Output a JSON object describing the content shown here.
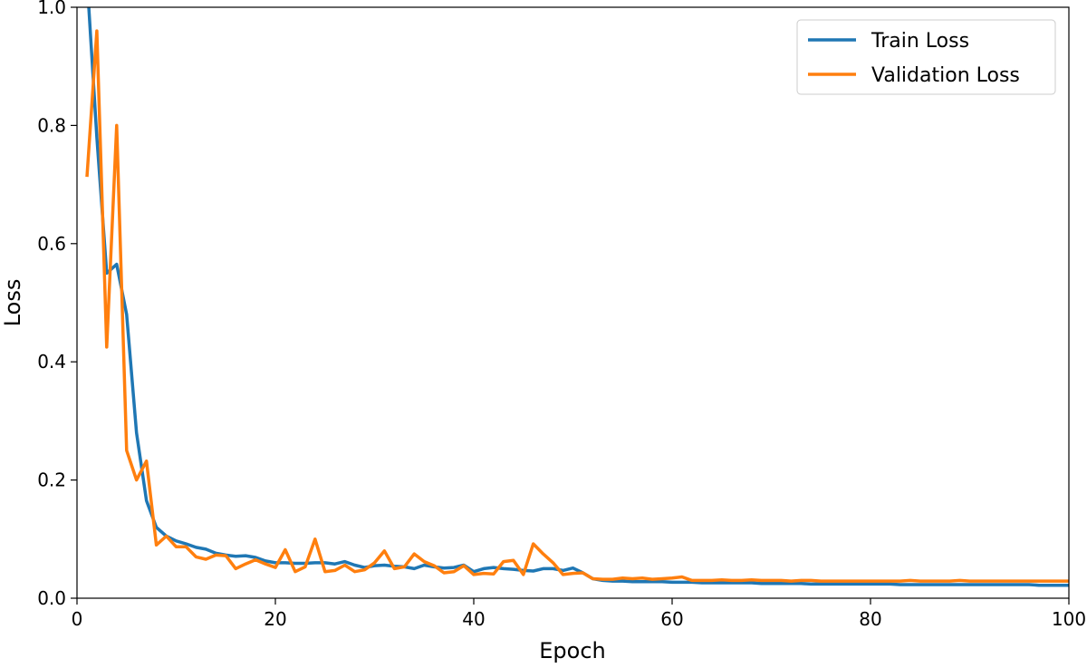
{
  "chart_data": {
    "type": "line",
    "title": "",
    "xlabel": "Epoch",
    "ylabel": "Loss",
    "xlim": [
      0,
      100
    ],
    "ylim": [
      0,
      1.0
    ],
    "xticks": [
      "0",
      "20",
      "40",
      "60",
      "80",
      "100"
    ],
    "yticks": [
      "0.0",
      "0.2",
      "0.4",
      "0.6",
      "0.8",
      "1.0"
    ],
    "grid": false,
    "legend_position": "top-right",
    "series": [
      {
        "name": "Train Loss",
        "color": "#1f77b4",
        "values": [
          1.05,
          0.78,
          0.55,
          0.565,
          0.48,
          0.28,
          0.165,
          0.12,
          0.105,
          0.097,
          0.092,
          0.086,
          0.083,
          0.076,
          0.073,
          0.071,
          0.072,
          0.069,
          0.063,
          0.06,
          0.06,
          0.059,
          0.059,
          0.06,
          0.06,
          0.058,
          0.062,
          0.056,
          0.052,
          0.055,
          0.056,
          0.054,
          0.053,
          0.05,
          0.056,
          0.053,
          0.051,
          0.052,
          0.056,
          0.045,
          0.05,
          0.052,
          0.05,
          0.049,
          0.047,
          0.046,
          0.05,
          0.05,
          0.047,
          0.051,
          0.043,
          0.033,
          0.03,
          0.029,
          0.029,
          0.028,
          0.028,
          0.028,
          0.028,
          0.027,
          0.027,
          0.027,
          0.026,
          0.026,
          0.026,
          0.026,
          0.026,
          0.026,
          0.025,
          0.025,
          0.025,
          0.025,
          0.025,
          0.024,
          0.024,
          0.024,
          0.024,
          0.024,
          0.024,
          0.024,
          0.024,
          0.024,
          0.023,
          0.023,
          0.023,
          0.023,
          0.023,
          0.023,
          0.023,
          0.023,
          0.023,
          0.023,
          0.023,
          0.023,
          0.023,
          0.023,
          0.022,
          0.022,
          0.022,
          0.022
        ]
      },
      {
        "name": "Validation Loss",
        "color": "#ff7f0e",
        "values": [
          0.713,
          0.96,
          0.425,
          0.8,
          0.25,
          0.2,
          0.232,
          0.09,
          0.105,
          0.087,
          0.087,
          0.07,
          0.066,
          0.073,
          0.072,
          0.05,
          0.058,
          0.065,
          0.058,
          0.052,
          0.082,
          0.045,
          0.053,
          0.1,
          0.045,
          0.047,
          0.056,
          0.045,
          0.048,
          0.06,
          0.08,
          0.05,
          0.053,
          0.075,
          0.062,
          0.055,
          0.043,
          0.045,
          0.055,
          0.04,
          0.042,
          0.041,
          0.062,
          0.064,
          0.04,
          0.092,
          0.075,
          0.06,
          0.04,
          0.042,
          0.043,
          0.033,
          0.032,
          0.032,
          0.034,
          0.033,
          0.034,
          0.032,
          0.033,
          0.034,
          0.036,
          0.03,
          0.03,
          0.03,
          0.031,
          0.03,
          0.03,
          0.031,
          0.03,
          0.03,
          0.03,
          0.029,
          0.03,
          0.03,
          0.029,
          0.029,
          0.029,
          0.029,
          0.029,
          0.029,
          0.029,
          0.029,
          0.029,
          0.03,
          0.029,
          0.029,
          0.029,
          0.029,
          0.03,
          0.029,
          0.029,
          0.029,
          0.029,
          0.029,
          0.029,
          0.029,
          0.029,
          0.029,
          0.029,
          0.029
        ]
      }
    ]
  }
}
